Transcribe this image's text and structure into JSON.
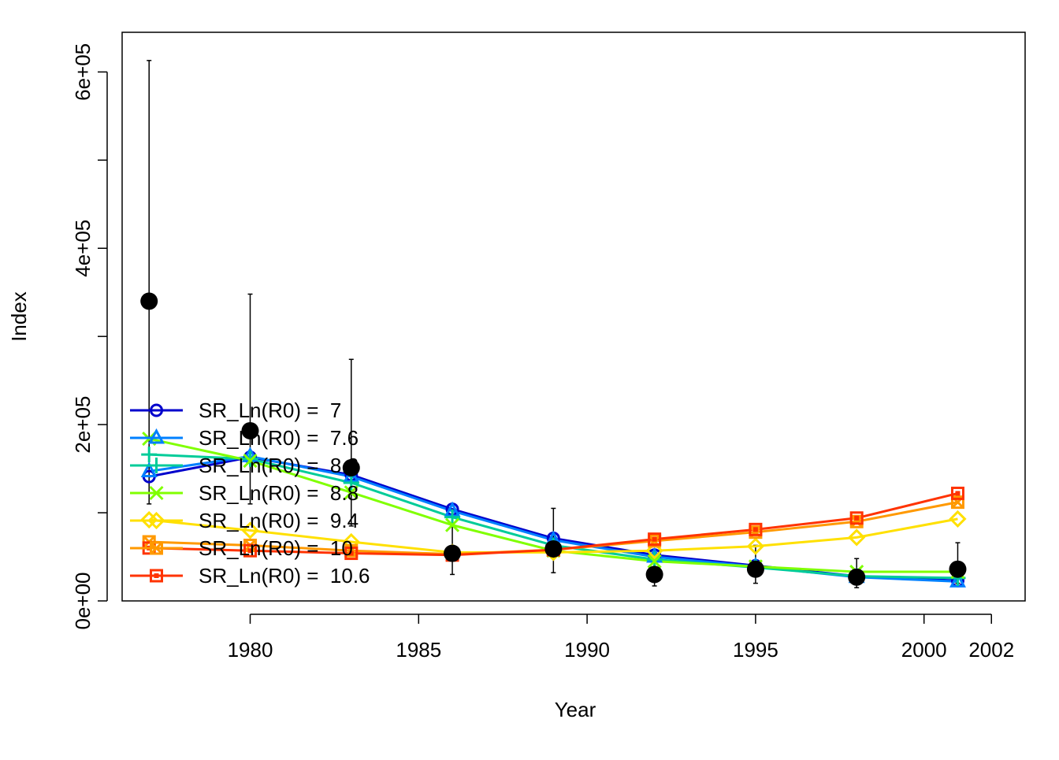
{
  "chart_data": {
    "type": "line",
    "title": "",
    "xlabel": "Year",
    "ylabel": "Index",
    "xlim": [
      1976.2,
      2003.0
    ],
    "ylim": [
      0,
      645000
    ],
    "x_ticks": [
      1980,
      1985,
      1990,
      1995,
      2000,
      2002
    ],
    "x_tick_labels": [
      "1980",
      "1985",
      "1990",
      "1995",
      "2000",
      "2002"
    ],
    "y_ticks": [
      0,
      100000,
      200000,
      300000,
      400000,
      500000,
      600000
    ],
    "y_tick_labels": [
      "0e+00",
      "",
      "2e+05",
      "",
      "4e+05",
      "",
      "6e+05"
    ],
    "grid": false,
    "legend_position": "bottom-left",
    "x": [
      1977,
      1980,
      1983,
      1986,
      1989,
      1992,
      1995,
      1998,
      2001
    ],
    "observed": {
      "values": [
        340000,
        193000,
        151000,
        54000,
        59000,
        30000,
        36000,
        27000,
        36000
      ],
      "lower": [
        110000,
        110000,
        85000,
        30000,
        32000,
        17000,
        20000,
        15000,
        20000
      ],
      "upper": [
        613000,
        348000,
        274000,
        97000,
        105000,
        53000,
        63000,
        48000,
        66000
      ],
      "color": "#000000"
    },
    "series": [
      {
        "name": "SR_Ln(R0) =  7",
        "color": "#0000CC",
        "marker": "circle",
        "values": [
          141000,
          163000,
          143000,
          104000,
          71000,
          52000,
          40000,
          28000,
          23000
        ]
      },
      {
        "name": "SR_Ln(R0) =  7.6",
        "color": "#0080FF",
        "marker": "triangle",
        "values": [
          147000,
          164000,
          141000,
          102000,
          69000,
          50000,
          39000,
          27000,
          22000
        ]
      },
      {
        "name": "SR_Ln(R0) =  8.2",
        "color": "#00CC99",
        "marker": "plus",
        "values": [
          166000,
          161000,
          134000,
          95000,
          63000,
          47000,
          38000,
          28000,
          26000
        ]
      },
      {
        "name": "SR_Ln(R0) =  8.8",
        "color": "#80FF00",
        "marker": "x",
        "values": [
          184000,
          159000,
          123000,
          86000,
          57000,
          45000,
          39000,
          33000,
          33000
        ]
      },
      {
        "name": "SR_Ln(R0) =  9.4",
        "color": "#FFE000",
        "marker": "diamond",
        "values": [
          92000,
          80000,
          67000,
          55000,
          55000,
          57000,
          62000,
          72000,
          93000
        ]
      },
      {
        "name": "SR_Ln(R0) =  10",
        "color": "#FF9900",
        "marker": "square-x",
        "values": [
          67000,
          63000,
          57000,
          53000,
          58000,
          68000,
          78000,
          90000,
          112000
        ]
      },
      {
        "name": "SR_Ln(R0) =  10.6",
        "color": "#FF3300",
        "marker": "square-boxed",
        "values": [
          60000,
          57000,
          54000,
          52000,
          58000,
          70000,
          81000,
          94000,
          122000
        ]
      }
    ]
  }
}
